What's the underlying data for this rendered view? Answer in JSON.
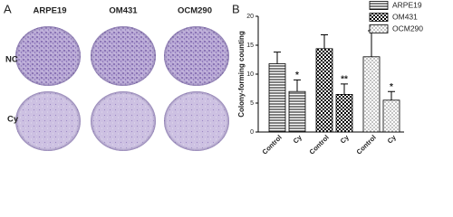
{
  "panel_a": {
    "label": "A",
    "columns": [
      "ARPE19",
      "OM431",
      "OCM290"
    ],
    "rows": [
      "NC",
      "Cy"
    ]
  },
  "chart_data": {
    "type": "bar",
    "panel_label": "B",
    "y_label": "Colony-forming counting",
    "categories": [
      "Control",
      "Cy"
    ],
    "ylim": [
      0,
      20
    ],
    "yticks": [
      0,
      5,
      10,
      15,
      20
    ],
    "series": [
      {
        "name": "ARPE19",
        "color": "#000000",
        "pattern": "hlines",
        "values": [
          11.8,
          7.0
        ],
        "errors": [
          2.0,
          2.0
        ],
        "significance": "*"
      },
      {
        "name": "OM431",
        "color": "#000000",
        "pattern": "checker",
        "values": [
          14.4,
          6.5
        ],
        "errors": [
          2.4,
          1.8
        ],
        "significance": "**"
      },
      {
        "name": "OCM290",
        "color": "#000000",
        "pattern": "dots",
        "values": [
          13.0,
          5.5
        ],
        "errors": [
          4.5,
          1.5
        ],
        "significance": "*"
      }
    ]
  }
}
